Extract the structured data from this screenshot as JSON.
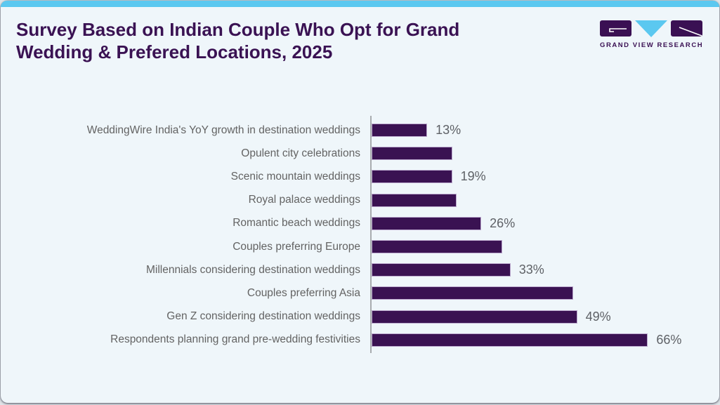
{
  "header": {
    "title_line1": "Survey Based on Indian Couple Who Opt for Grand",
    "title_line2": "Wedding & Prefered Locations, 2025",
    "logo_text": "GRAND VIEW RESEARCH"
  },
  "colors": {
    "accent_cyan": "#5BC8F0",
    "brand_purple": "#3A1053",
    "title_purple": "#3A1253",
    "bar_fill": "#3A1252",
    "bar_edge": "#BCA9CE",
    "category_label_gray": "#636363",
    "value_label_gray": "#5E6166",
    "axis_gray": "#A8ACAF",
    "card_background": "#EFF6FA"
  },
  "chart_data": {
    "type": "bar",
    "orientation": "horizontal",
    "title": "Survey Based on Indian Couple Who Opt for Grand Wedding & Prefered Locations, 2025",
    "xlabel": "",
    "ylabel": "",
    "unit": "%",
    "xlim": [
      0,
      70
    ],
    "grid": false,
    "legend": false,
    "categories": [
      "WeddingWire India's YoY growth in destination weddings",
      "Opulent city celebrations",
      "Scenic mountain weddings",
      "Royal palace weddings",
      "Romantic beach weddings",
      "Couples preferring Europe",
      "Millennials considering destination weddings",
      "Couples preferring Asia",
      "Gen Z considering destination weddings",
      "Respondents planning grand pre-wedding festivities"
    ],
    "values": [
      13,
      19,
      19,
      20,
      26,
      31,
      33,
      48,
      49,
      66
    ],
    "data_labels": [
      "13%",
      "",
      "19%",
      "",
      "26%",
      "",
      "33%",
      "",
      "49%",
      "66%"
    ]
  }
}
